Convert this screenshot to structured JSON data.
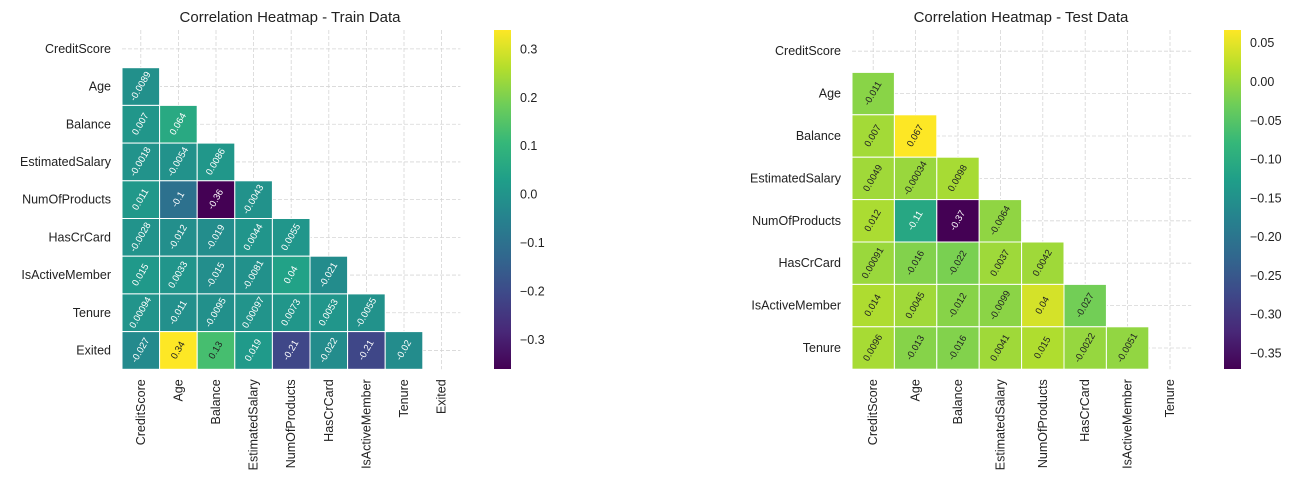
{
  "chart_data": [
    {
      "type": "heatmap",
      "title": "Correlation Heatmap - Train Data",
      "xlabel": "",
      "ylabel": "",
      "labels": [
        "CreditScore",
        "Age",
        "Balance",
        "EstimatedSalary",
        "NumOfProducts",
        "HasCrCard",
        "IsActiveMember",
        "Tenure",
        "Exited"
      ],
      "values": [
        [
          null,
          null,
          null,
          null,
          null,
          null,
          null,
          null,
          null
        ],
        [
          -0.0089,
          null,
          null,
          null,
          null,
          null,
          null,
          null,
          null
        ],
        [
          0.007,
          0.064,
          null,
          null,
          null,
          null,
          null,
          null,
          null
        ],
        [
          -0.0018,
          -0.0054,
          0.0086,
          null,
          null,
          null,
          null,
          null,
          null
        ],
        [
          0.011,
          -0.1,
          -0.36,
          -0.0043,
          null,
          null,
          null,
          null,
          null
        ],
        [
          -0.0028,
          -0.012,
          -0.019,
          0.0044,
          0.0055,
          null,
          null,
          null,
          null
        ],
        [
          0.015,
          0.0033,
          -0.015,
          -0.0081,
          0.04,
          -0.021,
          null,
          null,
          null
        ],
        [
          0.00094,
          -0.011,
          -0.0095,
          0.00097,
          0.0073,
          0.0053,
          -0.0055,
          null,
          null
        ],
        [
          -0.027,
          0.34,
          0.13,
          0.019,
          -0.21,
          -0.022,
          -0.21,
          -0.02,
          null
        ]
      ],
      "colormap": "viridis",
      "colorbar": {
        "vmin": -0.36,
        "vmax": 0.34,
        "ticks": [
          -0.3,
          -0.2,
          -0.1,
          0.0,
          0.1,
          0.2,
          0.3
        ],
        "tick_labels": [
          "−0.3",
          "−0.2",
          "−0.1",
          "0.0",
          "0.1",
          "0.2",
          "0.3"
        ]
      },
      "grid": true,
      "mask": "upper-triangle"
    },
    {
      "type": "heatmap",
      "title": "Correlation Heatmap - Test Data",
      "xlabel": "",
      "ylabel": "",
      "labels": [
        "CreditScore",
        "Age",
        "Balance",
        "EstimatedSalary",
        "NumOfProducts",
        "HasCrCard",
        "IsActiveMember",
        "Tenure"
      ],
      "values": [
        [
          null,
          null,
          null,
          null,
          null,
          null,
          null,
          null
        ],
        [
          -0.011,
          null,
          null,
          null,
          null,
          null,
          null,
          null
        ],
        [
          0.007,
          0.067,
          null,
          null,
          null,
          null,
          null,
          null
        ],
        [
          0.0049,
          -0.00034,
          0.0098,
          null,
          null,
          null,
          null,
          null
        ],
        [
          0.012,
          -0.11,
          -0.37,
          -0.0064,
          null,
          null,
          null,
          null
        ],
        [
          0.00091,
          -0.016,
          -0.022,
          0.0037,
          0.0042,
          null,
          null,
          null
        ],
        [
          0.014,
          0.0045,
          -0.012,
          -0.0099,
          0.04,
          -0.027,
          null,
          null
        ],
        [
          0.0096,
          -0.013,
          -0.016,
          0.0041,
          0.015,
          -0.0022,
          -0.0051,
          null
        ]
      ],
      "colormap": "viridis",
      "colorbar": {
        "vmin": -0.37,
        "vmax": 0.067,
        "ticks": [
          -0.35,
          -0.3,
          -0.25,
          -0.2,
          -0.15,
          -0.1,
          -0.05,
          0.0,
          0.05
        ],
        "tick_labels": [
          "−0.35",
          "−0.30",
          "−0.25",
          "−0.20",
          "−0.15",
          "−0.10",
          "−0.05",
          "0.00",
          "0.05"
        ]
      },
      "grid": true,
      "mask": "upper-triangle"
    }
  ]
}
